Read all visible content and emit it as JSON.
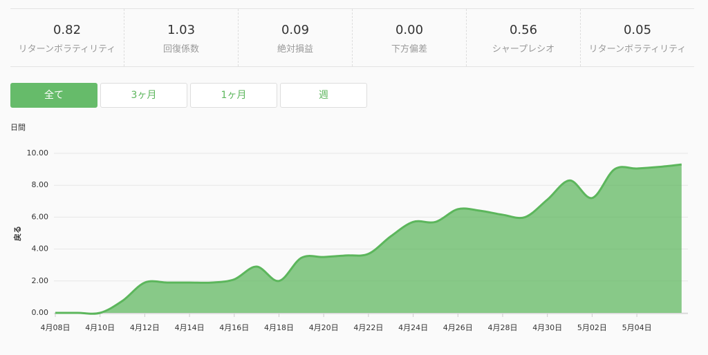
{
  "stats": [
    {
      "value": "0.82",
      "label": "リターンボラティリティ"
    },
    {
      "value": "1.03",
      "label": "回復係数"
    },
    {
      "value": "0.09",
      "label": "絶対損益"
    },
    {
      "value": "0.00",
      "label": "下方偏差"
    },
    {
      "value": "0.56",
      "label": "シャープレシオ"
    },
    {
      "value": "0.05",
      "label": "リターンボラティリティ"
    }
  ],
  "tabs": [
    "全て",
    "3ヶ月",
    "1ヶ月",
    "週"
  ],
  "chart_data": {
    "type": "area",
    "title": "日間",
    "y_label": "戻る",
    "categories": [
      "4月08日",
      null,
      "4月10日",
      null,
      "4月12日",
      null,
      "4月14日",
      null,
      "4月16日",
      null,
      "4月18日",
      null,
      "4月20日",
      null,
      "4月22日",
      null,
      "4月24日",
      null,
      "4月26日",
      null,
      "4月28日",
      null,
      "4月30日",
      null,
      "5月02日",
      null,
      "5月04日",
      null,
      null
    ],
    "series": [
      {
        "color": "#5cb65c",
        "values": [
          0,
          0,
          0,
          0.75,
          1.9,
          1.9,
          1.9,
          1.9,
          2.1,
          2.9,
          2.0,
          3.45,
          3.5,
          3.6,
          3.7,
          4.8,
          5.7,
          5.7,
          6.5,
          6.4,
          6.15,
          6.0,
          7.1,
          8.3,
          7.2,
          9.0,
          9.05,
          9.15,
          9.3
        ]
      }
    ],
    "ylim": [
      0,
      10
    ],
    "yticks": [
      {
        "value": 0,
        "label": "0.00"
      },
      {
        "value": 2,
        "label": "2.00"
      },
      {
        "value": 4,
        "label": "4.00"
      },
      {
        "value": 6,
        "label": "6.00"
      },
      {
        "value": 8,
        "label": "8.00"
      },
      {
        "value": 10,
        "label": "10.00"
      }
    ],
    "grid": true
  }
}
